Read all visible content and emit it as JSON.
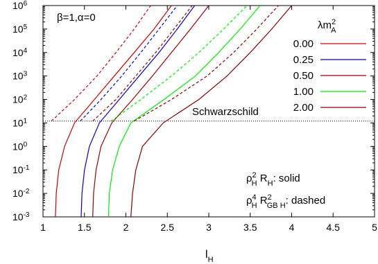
{
  "chart_data": {
    "type": "line",
    "xlabel": "l",
    "xlabel_sub": "H",
    "ylabel": "",
    "xlim": [
      1,
      5
    ],
    "ylim_log10": [
      -3,
      6
    ],
    "y_scale": "log",
    "grid": false,
    "x_ticks": [
      "1",
      "1.5",
      "2",
      "2.5",
      "3",
      "3.5",
      "4",
      "4.5",
      "5"
    ],
    "y_ticks": [
      {
        "base": "10",
        "exp": "-3"
      },
      {
        "base": "10",
        "exp": "-2"
      },
      {
        "base": "10",
        "exp": "-1"
      },
      {
        "base": "10",
        "exp": "0"
      },
      {
        "base": "10",
        "exp": "1"
      },
      {
        "base": "10",
        "exp": "2"
      },
      {
        "base": "10",
        "exp": "3"
      },
      {
        "base": "10",
        "exp": "4"
      },
      {
        "base": "10",
        "exp": "5"
      },
      {
        "base": "10",
        "exp": "6"
      }
    ],
    "params_label": "β=1,α=0",
    "legend": {
      "title": "λm",
      "title_sup": "2",
      "title_sub": "A",
      "placement": "top-right",
      "entries": [
        "0.00",
        "0.25",
        "0.50",
        "1.00",
        "2.00"
      ]
    },
    "reference_line": {
      "label": "Schwarzschild",
      "y": 12
    },
    "style_note_solid": {
      "a": "ρ",
      "a_sup": "2",
      "a_sub": "H",
      "b": " R",
      "b_sub": "H",
      "c": ": solid"
    },
    "style_note_dashed": {
      "a": "ρ",
      "a_sup": "4",
      "a_sub": "H",
      "b": " R",
      "b_sup": "2",
      "b_sub": "GB H",
      "c": ": dashed"
    },
    "series": [
      {
        "name": "0.00",
        "color": "#cc0000",
        "style": "solid",
        "points": [
          [
            1.15,
            0.001
          ],
          [
            1.16,
            0.01
          ],
          [
            1.19,
            0.1
          ],
          [
            1.26,
            1
          ],
          [
            1.38,
            10
          ],
          [
            1.62,
            100
          ],
          [
            1.86,
            1000
          ],
          [
            2.1,
            10000
          ],
          [
            2.34,
            100000
          ],
          [
            2.55,
            1000000
          ]
        ]
      },
      {
        "name": "0.25",
        "color": "#0000cc",
        "style": "solid",
        "points": [
          [
            1.46,
            0.001
          ],
          [
            1.47,
            0.01
          ],
          [
            1.5,
            0.1
          ],
          [
            1.56,
            1
          ],
          [
            1.68,
            10
          ],
          [
            1.92,
            100
          ],
          [
            2.16,
            1000
          ],
          [
            2.4,
            10000
          ],
          [
            2.62,
            100000
          ],
          [
            2.83,
            1000000
          ]
        ]
      },
      {
        "name": "0.50",
        "color": "#990000",
        "style": "solid",
        "points": [
          [
            1.6,
            0.001
          ],
          [
            1.61,
            0.01
          ],
          [
            1.64,
            0.1
          ],
          [
            1.7,
            1
          ],
          [
            1.83,
            10
          ],
          [
            2.08,
            100
          ],
          [
            2.32,
            1000
          ],
          [
            2.55,
            10000
          ],
          [
            2.78,
            100000
          ],
          [
            3.0,
            1000000
          ]
        ]
      },
      {
        "name": "1.00",
        "color": "#00ee00",
        "style": "solid",
        "points": [
          [
            1.79,
            0.001
          ],
          [
            1.8,
            0.01
          ],
          [
            1.84,
            0.1
          ],
          [
            1.92,
            1
          ],
          [
            2.06,
            10
          ],
          [
            2.46,
            100
          ],
          [
            2.84,
            1000
          ],
          [
            3.12,
            10000
          ],
          [
            3.38,
            100000
          ],
          [
            3.62,
            1000000
          ]
        ]
      },
      {
        "name": "2.00",
        "color": "#880000",
        "style": "solid",
        "points": [
          [
            2.06,
            0.001
          ],
          [
            2.08,
            0.01
          ],
          [
            2.12,
            0.1
          ],
          [
            2.2,
            1
          ],
          [
            2.45,
            10
          ],
          [
            2.88,
            100
          ],
          [
            3.22,
            1000
          ],
          [
            3.5,
            10000
          ],
          [
            3.76,
            100000
          ],
          [
            4.0,
            1000000
          ]
        ]
      },
      {
        "name": "0.00",
        "color": "#cc0000",
        "style": "dashed",
        "points": [
          [
            1.1,
            12
          ],
          [
            1.38,
            100
          ],
          [
            1.65,
            1000
          ],
          [
            1.88,
            10000
          ],
          [
            2.1,
            100000
          ],
          [
            2.3,
            1000000
          ]
        ]
      },
      {
        "name": "0.25",
        "color": "#0000cc",
        "style": "dashed",
        "points": [
          [
            1.45,
            12
          ],
          [
            1.7,
            100
          ],
          [
            1.95,
            1000
          ],
          [
            2.18,
            10000
          ],
          [
            2.4,
            100000
          ],
          [
            2.62,
            1000000
          ]
        ]
      },
      {
        "name": "0.50",
        "color": "#990000",
        "style": "dashed",
        "points": [
          [
            1.6,
            12
          ],
          [
            1.88,
            100
          ],
          [
            2.12,
            1000
          ],
          [
            2.36,
            10000
          ],
          [
            2.58,
            100000
          ],
          [
            2.8,
            1000000
          ]
        ]
      },
      {
        "name": "1.00",
        "color": "#00ee00",
        "style": "dashed",
        "points": [
          [
            1.82,
            12
          ],
          [
            2.18,
            100
          ],
          [
            2.55,
            1000
          ],
          [
            2.88,
            10000
          ],
          [
            3.18,
            100000
          ],
          [
            3.46,
            1000000
          ]
        ]
      },
      {
        "name": "2.00",
        "color": "#880000",
        "style": "dashed",
        "points": [
          [
            2.1,
            12
          ],
          [
            2.55,
            100
          ],
          [
            2.98,
            1000
          ],
          [
            3.3,
            10000
          ],
          [
            3.58,
            100000
          ],
          [
            3.84,
            1000000
          ]
        ]
      }
    ]
  }
}
